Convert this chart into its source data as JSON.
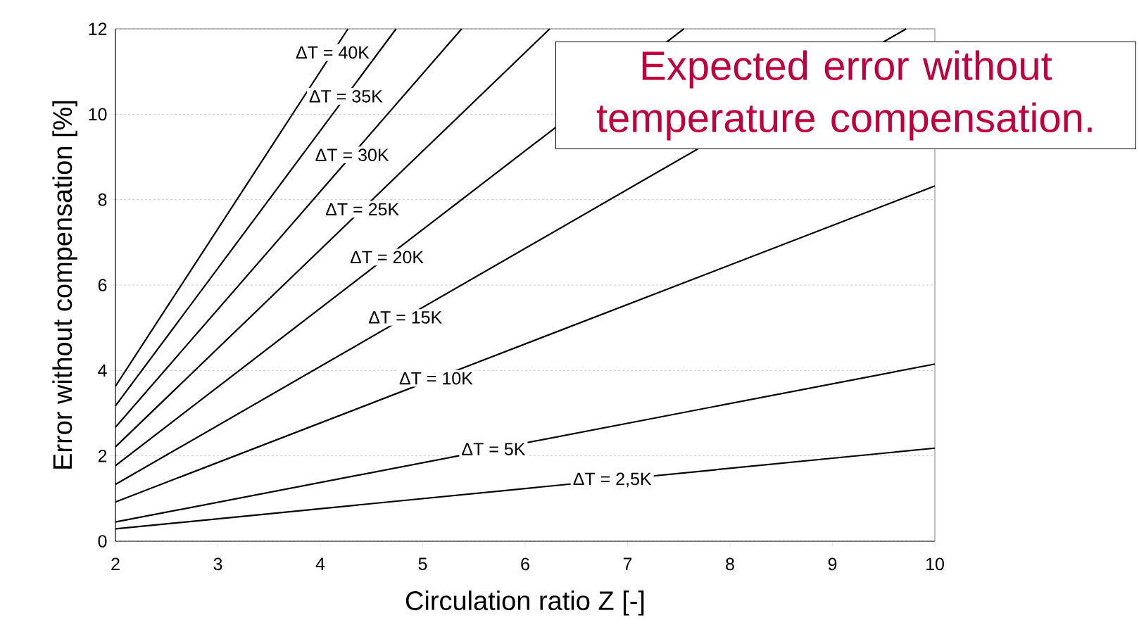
{
  "chart_data": {
    "type": "line",
    "xlabel": "Circulation ratio Z  [-]",
    "ylabel": "Error without compensation  [%]",
    "xlim": [
      2,
      10
    ],
    "ylim": [
      0,
      12
    ],
    "xticks": [
      2,
      3,
      4,
      5,
      6,
      7,
      8,
      9,
      10
    ],
    "yticks": [
      0,
      2,
      4,
      6,
      8,
      10,
      12
    ],
    "grid": "y",
    "marker": "none",
    "line_style": "solid",
    "annotations": [
      "Expected error without temperature compensation."
    ],
    "series": [
      {
        "name": "ΔT = 40K",
        "color": "#000000",
        "x": [
          2,
          4.27
        ],
        "values": [
          3.63,
          12
        ]
      },
      {
        "name": "ΔT = 35K",
        "color": "#000000",
        "x": [
          2,
          4.74
        ],
        "values": [
          3.17,
          12
        ]
      },
      {
        "name": "ΔT = 30K",
        "color": "#000000",
        "x": [
          2,
          5.38
        ],
        "values": [
          2.67,
          12
        ]
      },
      {
        "name": "ΔT = 25K",
        "color": "#000000",
        "x": [
          2,
          6.24
        ],
        "values": [
          2.21,
          12
        ]
      },
      {
        "name": "ΔT = 20K",
        "color": "#000000",
        "x": [
          2,
          7.55
        ],
        "values": [
          1.77,
          12
        ]
      },
      {
        "name": "ΔT = 15K",
        "color": "#000000",
        "x": [
          2,
          9.72
        ],
        "values": [
          1.33,
          12
        ]
      },
      {
        "name": "ΔT = 10K",
        "color": "#000000",
        "x": [
          2,
          10
        ],
        "values": [
          0.92,
          8.32
        ]
      },
      {
        "name": "ΔT = 5K",
        "color": "#000000",
        "x": [
          2,
          10
        ],
        "values": [
          0.45,
          4.15
        ]
      },
      {
        "name": "ΔT = 2,5K",
        "color": "#000000",
        "x": [
          2,
          10
        ],
        "values": [
          0.29,
          2.18
        ]
      }
    ]
  }
}
